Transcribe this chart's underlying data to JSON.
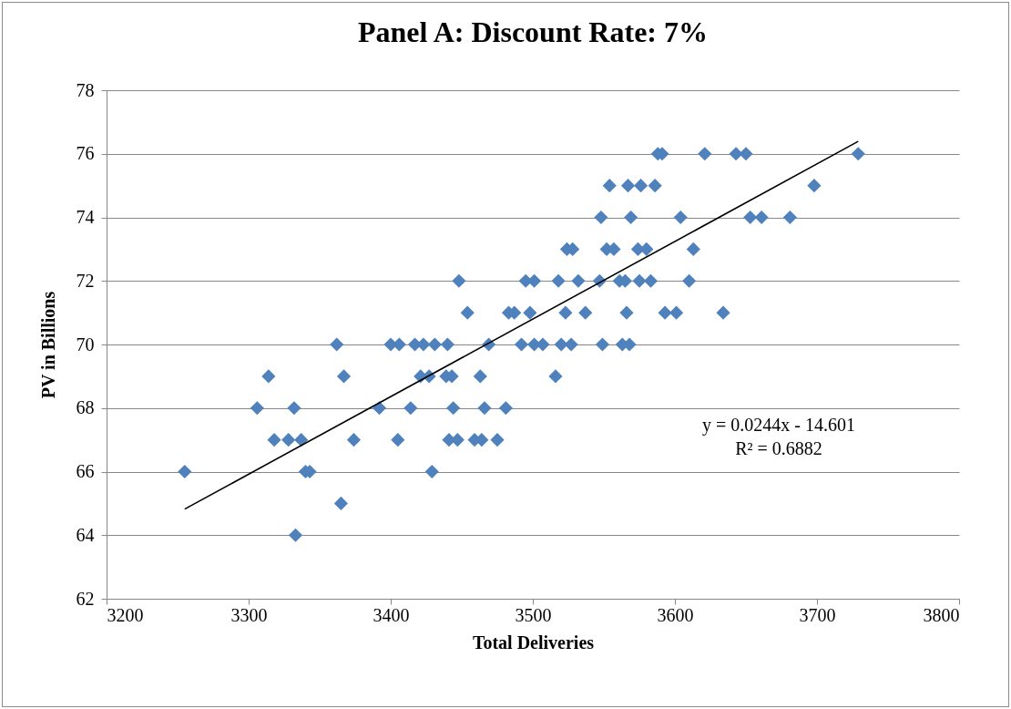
{
  "chart_data": {
    "type": "scatter",
    "title": "Panel A: Discount Rate: 7%",
    "xlabel": "Total  Deliveries",
    "ylabel": "PV in Billions",
    "xlim": [
      3200,
      3800
    ],
    "xticks": [
      3200,
      3300,
      3400,
      3500,
      3600,
      3700,
      3800
    ],
    "ylim": [
      62,
      78
    ],
    "yticks": [
      62,
      64,
      66,
      68,
      70,
      72,
      74,
      76,
      78
    ],
    "grid": "y",
    "annotations": [
      "y = 0.0244x  - 14.601",
      "R² = 0.6882"
    ],
    "series": [
      {
        "color": "#4f81bd",
        "marker": "diamond",
        "x": [
          3588,
          3591,
          3621,
          3643,
          3650,
          3729,
          3554,
          3567,
          3576,
          3586,
          3698,
          3548,
          3569,
          3604,
          3653,
          3661,
          3681,
          3524,
          3528,
          3552,
          3557,
          3574,
          3580,
          3613,
          3448,
          3495,
          3501,
          3518,
          3532,
          3547,
          3561,
          3565,
          3575,
          3583,
          3610,
          3454,
          3483,
          3487,
          3498,
          3523,
          3537,
          3566,
          3593,
          3601,
          3634,
          3362,
          3400,
          3406,
          3417,
          3423,
          3431,
          3440,
          3469,
          3492,
          3501,
          3507,
          3520,
          3527,
          3549,
          3563,
          3568,
          3314,
          3367,
          3421,
          3427,
          3439,
          3443,
          3463,
          3516,
          3306,
          3332,
          3392,
          3414,
          3444,
          3466,
          3481,
          3318,
          3328,
          3337,
          3374,
          3405,
          3441,
          3447,
          3459,
          3464,
          3475,
          3255,
          3340,
          3343,
          3429,
          3365,
          3333
        ],
        "values": [
          76,
          76,
          76,
          76,
          76,
          76,
          75,
          75,
          75,
          75,
          75,
          74,
          74,
          74,
          74,
          74,
          74,
          73,
          73,
          73,
          73,
          73,
          73,
          73,
          72,
          72,
          72,
          72,
          72,
          72,
          72,
          72,
          72,
          72,
          72,
          71,
          71,
          71,
          71,
          71,
          71,
          71,
          71,
          71,
          71,
          70,
          70,
          70,
          70,
          70,
          70,
          70,
          70,
          70,
          70,
          70,
          70,
          70,
          70,
          70,
          70,
          69,
          69,
          69,
          69,
          69,
          69,
          69,
          69,
          68,
          68,
          68,
          68,
          68,
          68,
          68,
          67,
          67,
          67,
          67,
          67,
          67,
          67,
          67,
          67,
          67,
          66,
          66,
          66,
          66,
          65,
          64
        ]
      },
      {
        "type": "line",
        "color": "#000000",
        "x": [
          3255,
          3729
        ],
        "values": [
          64.82,
          76.39
        ]
      }
    ]
  }
}
